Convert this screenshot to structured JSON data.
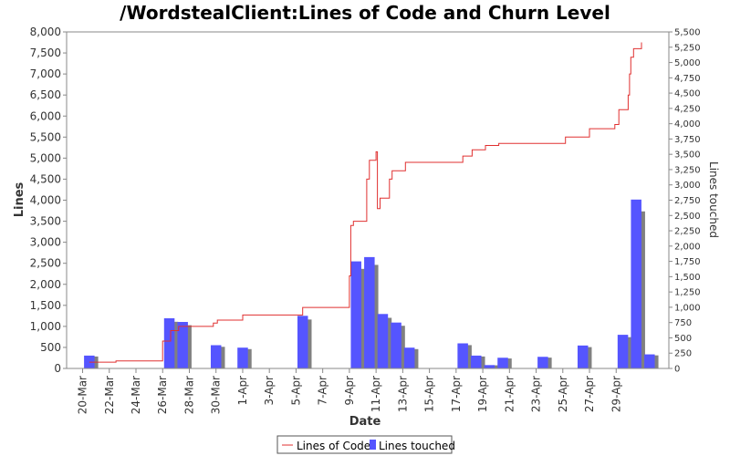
{
  "chart_data": {
    "type": "bar+line",
    "title": "/WordstealClient:Lines of Code and Churn Level",
    "xlabel": "Date",
    "ylabel": "Lines",
    "ylabel_right": "Lines touched",
    "x_ticks": [
      "20-Mar",
      "22-Mar",
      "24-Mar",
      "26-Mar",
      "28-Mar",
      "30-Mar",
      "1-Apr",
      "3-Apr",
      "5-Apr",
      "7-Apr",
      "9-Apr",
      "11-Apr",
      "13-Apr",
      "15-Apr",
      "17-Apr",
      "19-Apr",
      "21-Apr",
      "23-Apr",
      "25-Apr",
      "27-Apr",
      "29-Apr"
    ],
    "ylim": [
      0,
      8000
    ],
    "y_ticks": [
      "0",
      "500",
      "1,000",
      "1,500",
      "2,000",
      "2,500",
      "3,000",
      "3,500",
      "4,000",
      "4,500",
      "5,000",
      "5,500",
      "6,000",
      "6,500",
      "7,000",
      "7,500",
      "8,000"
    ],
    "y2lim": [
      0,
      5500
    ],
    "y2_ticks": [
      "0",
      "250",
      "500",
      "750",
      "1,000",
      "1,250",
      "1,500",
      "1,750",
      "2,000",
      "2,250",
      "2,500",
      "2,750",
      "3,000",
      "3,250",
      "3,500",
      "3,750",
      "4,000",
      "4,250",
      "4,500",
      "4,750",
      "5,000",
      "5,250",
      "5,500"
    ],
    "grid": false,
    "legend_position": "bottom",
    "colors": {
      "line": "#e03030",
      "bar": "#5555ff",
      "bar_shadow": "#808080",
      "axis": "#888888",
      "plot_bg": "#ffffff"
    },
    "series": [
      {
        "name": "Lines of Code",
        "kind": "line",
        "axis": "left",
        "points": [
          [
            20.5,
            150
          ],
          [
            22.5,
            150
          ],
          [
            22.5,
            180
          ],
          [
            26.0,
            180
          ],
          [
            26.0,
            650
          ],
          [
            26.6,
            650
          ],
          [
            26.6,
            900
          ],
          [
            27.2,
            900
          ],
          [
            27.2,
            1000
          ],
          [
            29.8,
            1000
          ],
          [
            29.8,
            1080
          ],
          [
            30.1,
            1080
          ],
          [
            30.1,
            1150
          ],
          [
            32.0,
            1150
          ],
          [
            32.0,
            1270
          ],
          [
            36.5,
            1270
          ],
          [
            36.5,
            1450
          ],
          [
            40.0,
            1450
          ],
          [
            40.0,
            2200
          ],
          [
            40.1,
            2200
          ],
          [
            40.1,
            3400
          ],
          [
            40.3,
            3400
          ],
          [
            40.3,
            3500
          ],
          [
            41.3,
            3500
          ],
          [
            41.3,
            4500
          ],
          [
            41.5,
            4500
          ],
          [
            41.5,
            4950
          ],
          [
            42.0,
            4950
          ],
          [
            42.0,
            5150
          ],
          [
            42.1,
            5150
          ],
          [
            42.1,
            3800
          ],
          [
            42.3,
            3800
          ],
          [
            42.3,
            4050
          ],
          [
            43.0,
            4050
          ],
          [
            43.0,
            4500
          ],
          [
            43.2,
            4500
          ],
          [
            43.2,
            4700
          ],
          [
            44.2,
            4700
          ],
          [
            44.2,
            4900
          ],
          [
            48.5,
            4900
          ],
          [
            48.5,
            5050
          ],
          [
            49.2,
            5050
          ],
          [
            49.2,
            5200
          ],
          [
            50.2,
            5200
          ],
          [
            50.2,
            5300
          ],
          [
            51.2,
            5300
          ],
          [
            51.2,
            5350
          ],
          [
            56.2,
            5350
          ],
          [
            56.2,
            5500
          ],
          [
            58.0,
            5500
          ],
          [
            58.0,
            5700
          ],
          [
            59.9,
            5700
          ],
          [
            59.9,
            5800
          ],
          [
            60.2,
            5800
          ],
          [
            60.2,
            6150
          ],
          [
            60.9,
            6150
          ],
          [
            60.9,
            6500
          ],
          [
            61.0,
            6500
          ],
          [
            61.0,
            7000
          ],
          [
            61.1,
            7000
          ],
          [
            61.1,
            7400
          ],
          [
            61.3,
            7400
          ],
          [
            61.3,
            7600
          ],
          [
            61.9,
            7600
          ],
          [
            61.9,
            7750
          ]
        ]
      },
      {
        "name": "Lines touched",
        "kind": "bar",
        "axis": "right",
        "points": [
          [
            20.5,
            210
          ],
          [
            26.5,
            820
          ],
          [
            27.5,
            760
          ],
          [
            30.0,
            380
          ],
          [
            32.0,
            340
          ],
          [
            36.5,
            860
          ],
          [
            40.5,
            1750
          ],
          [
            41.5,
            1820
          ],
          [
            42.5,
            890
          ],
          [
            43.5,
            750
          ],
          [
            44.5,
            340
          ],
          [
            48.5,
            410
          ],
          [
            49.5,
            210
          ],
          [
            50.5,
            55
          ],
          [
            51.5,
            175
          ],
          [
            54.5,
            190
          ],
          [
            57.5,
            375
          ],
          [
            60.5,
            550
          ],
          [
            61.5,
            2760
          ],
          [
            62.5,
            230
          ]
        ]
      }
    ]
  }
}
